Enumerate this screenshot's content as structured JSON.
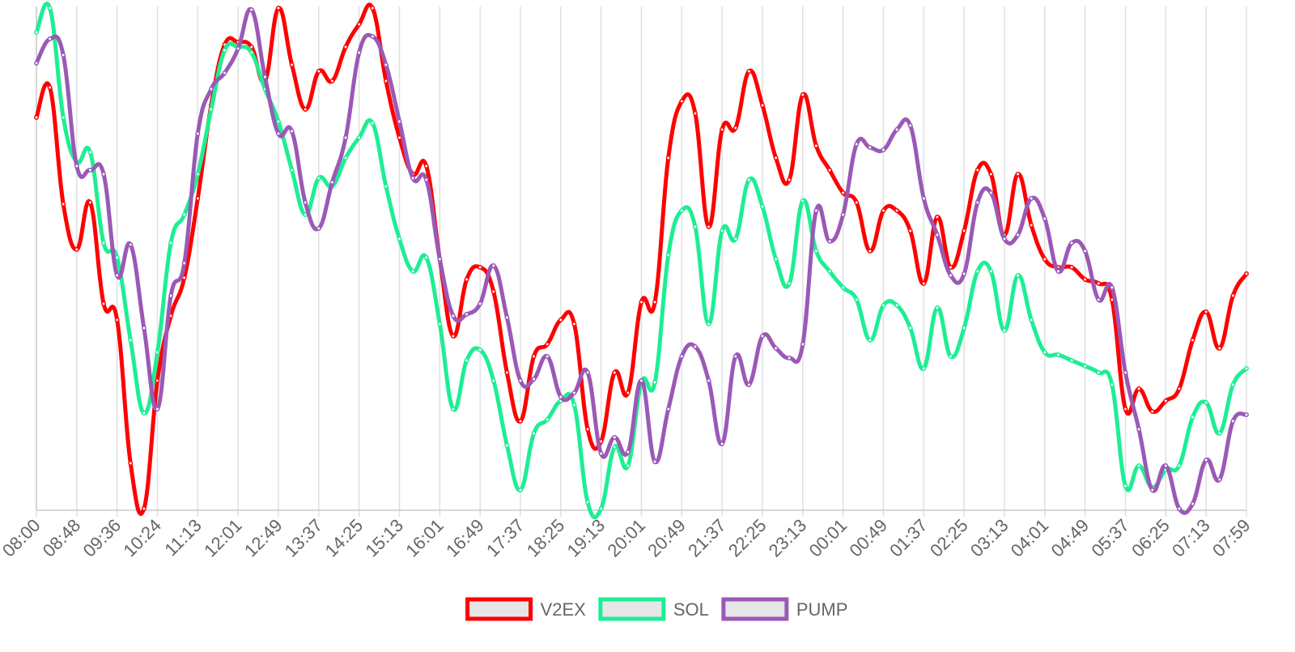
{
  "chart_data": {
    "type": "line",
    "legend": "bottom",
    "grid": true,
    "ylim": [
      0,
      622
    ],
    "categories": [
      "08:00",
      null,
      null,
      "08:48",
      null,
      null,
      "09:36",
      null,
      null,
      "10:24",
      null,
      null,
      "11:13",
      null,
      null,
      "12:01",
      null,
      null,
      "12:49",
      null,
      null,
      "13:37",
      null,
      null,
      "14:25",
      null,
      null,
      "15:13",
      null,
      null,
      "16:01",
      null,
      null,
      "16:49",
      null,
      null,
      "17:37",
      null,
      null,
      "18:25",
      null,
      null,
      "19:13",
      null,
      null,
      "20:01",
      null,
      null,
      "20:49",
      null,
      null,
      "21:37",
      null,
      null,
      "22:25",
      null,
      null,
      "23:13",
      null,
      null,
      "00:01",
      null,
      null,
      "00:49",
      null,
      null,
      "01:37",
      null,
      null,
      "02:25",
      null,
      null,
      "03:13",
      null,
      null,
      "04:01",
      null,
      null,
      "04:49",
      null,
      null,
      "05:37",
      null,
      null,
      "06:25",
      null,
      null,
      "07:13",
      null,
      null,
      "07:59"
    ],
    "series": [
      {
        "name": "V2EX",
        "color": "#ff0000",
        "values": [
          485,
          522,
          378,
          322,
          380,
          255,
          235,
          58,
          2,
          160,
          240,
          287,
          385,
          500,
          575,
          578,
          572,
          530,
          620,
          550,
          495,
          542,
          530,
          572,
          600,
          620,
          530,
          460,
          415,
          425,
          310,
          215,
          285,
          300,
          270,
          170,
          110,
          190,
          205,
          235,
          230,
          100,
          85,
          170,
          145,
          257,
          257,
          435,
          505,
          490,
          350,
          470,
          472,
          542,
          500,
          435,
          408,
          513,
          450,
          420,
          392,
          380,
          320,
          370,
          370,
          345,
          280,
          362,
          300,
          345,
          420,
          415,
          340,
          415,
          352,
          310,
          300,
          300,
          285,
          280,
          260,
          125,
          150,
          122,
          135,
          150,
          210,
          245,
          200,
          265,
          292
        ]
      },
      {
        "name": "SOL",
        "color": "#1dee94",
        "values": [
          590,
          620,
          485,
          430,
          442,
          330,
          312,
          210,
          120,
          195,
          330,
          365,
          415,
          495,
          568,
          572,
          565,
          520,
          480,
          420,
          365,
          410,
          400,
          435,
          460,
          478,
          400,
          335,
          295,
          312,
          230,
          125,
          185,
          198,
          160,
          80,
          25,
          95,
          112,
          135,
          130,
          10,
          2,
          78,
          55,
          158,
          158,
          315,
          370,
          350,
          230,
          345,
          335,
          408,
          375,
          310,
          280,
          382,
          320,
          295,
          275,
          260,
          210,
          253,
          253,
          225,
          175,
          250,
          190,
          225,
          295,
          295,
          222,
          290,
          235,
          195,
          192,
          185,
          178,
          170,
          155,
          30,
          55,
          28,
          50,
          55,
          115,
          133,
          95,
          155,
          175
        ]
      },
      {
        "name": "PUMP",
        "color": "#9b59b6",
        "values": [
          552,
          582,
          562,
          425,
          420,
          415,
          290,
          328,
          225,
          125,
          265,
          305,
          465,
          520,
          540,
          570,
          618,
          535,
          465,
          468,
          380,
          348,
          405,
          460,
          565,
          585,
          550,
          480,
          410,
          408,
          310,
          240,
          242,
          255,
          302,
          238,
          160,
          162,
          190,
          140,
          145,
          170,
          70,
          90,
          72,
          160,
          60,
          125,
          190,
          202,
          160,
          82,
          190,
          155,
          215,
          200,
          188,
          205,
          370,
          332,
          365,
          452,
          448,
          445,
          470,
          475,
          385,
          340,
          290,
          292,
          380,
          392,
          335,
          340,
          385,
          360,
          295,
          330,
          320,
          260,
          275,
          170,
          100,
          25,
          55,
          2,
          8,
          62,
          38,
          110,
          118
        ]
      }
    ]
  }
}
